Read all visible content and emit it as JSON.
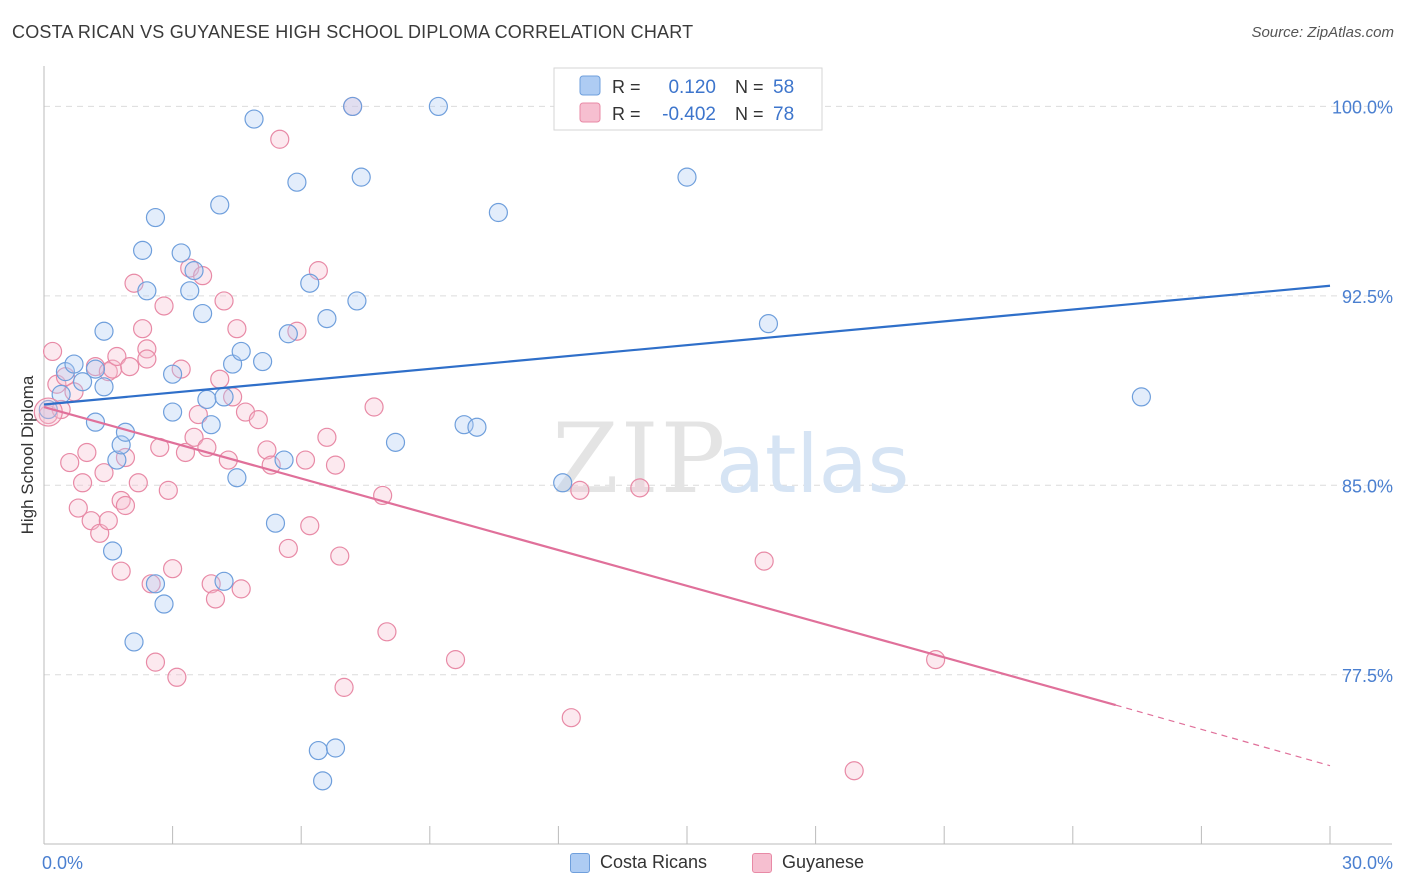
{
  "title": "COSTA RICAN VS GUYANESE HIGH SCHOOL DIPLOMA CORRELATION CHART",
  "source": "Source: ZipAtlas.com",
  "watermark": {
    "zip": "ZIP",
    "atlas": "atlas"
  },
  "colors": {
    "blue_fill": "#aeccf3",
    "blue_stroke": "#6f9fdc",
    "blue_line": "#2f6fc9",
    "pink_fill": "#f6bfd0",
    "pink_stroke": "#e88aa6",
    "pink_line": "#e0709a",
    "tick_label": "#4a7fd0",
    "grid": "#dcdcdc"
  },
  "legend_top": {
    "rows": [
      {
        "r_label": "R =",
        "r_value": "0.120",
        "n_label": "N =",
        "n_value": "58",
        "color": "blue"
      },
      {
        "r_label": "R =",
        "r_value": "-0.402",
        "n_label": "N =",
        "n_value": "78",
        "color": "pink"
      }
    ]
  },
  "legend_bottom": [
    "Costa Ricans",
    "Guyanese"
  ],
  "chart_data": {
    "type": "scatter",
    "xlabel": "",
    "ylabel": "High School Diploma",
    "xlim": [
      0,
      30
    ],
    "ylim": [
      70.8,
      101.6
    ],
    "x_tick_labels": [
      {
        "value": 0,
        "label": "0.0%"
      },
      {
        "value": 30,
        "label": "30.0%"
      }
    ],
    "y_tick_labels": [
      {
        "value": 100,
        "label": "100.0%"
      },
      {
        "value": 92.5,
        "label": "92.5%"
      },
      {
        "value": 85,
        "label": "85.0%"
      },
      {
        "value": 77.5,
        "label": "77.5%"
      }
    ],
    "grid": true,
    "series": [
      {
        "name": "Costa Ricans",
        "color": "blue",
        "trend": {
          "x": [
            0,
            30
          ],
          "y": [
            88.2,
            92.9
          ]
        },
        "points": [
          [
            0.1,
            88.0
          ],
          [
            0.4,
            88.6
          ],
          [
            0.5,
            89.5
          ],
          [
            0.7,
            89.8
          ],
          [
            0.9,
            89.1
          ],
          [
            1.2,
            89.6
          ],
          [
            1.2,
            87.5
          ],
          [
            1.4,
            88.9
          ],
          [
            1.4,
            91.1
          ],
          [
            1.6,
            82.4
          ],
          [
            1.7,
            86.0
          ],
          [
            1.8,
            86.6
          ],
          [
            1.9,
            87.1
          ],
          [
            2.1,
            78.8
          ],
          [
            2.3,
            94.3
          ],
          [
            2.4,
            92.7
          ],
          [
            2.6,
            95.6
          ],
          [
            2.6,
            81.1
          ],
          [
            2.8,
            80.3
          ],
          [
            3.0,
            87.9
          ],
          [
            3.0,
            89.4
          ],
          [
            3.2,
            94.2
          ],
          [
            3.4,
            92.7
          ],
          [
            3.5,
            93.5
          ],
          [
            3.7,
            91.8
          ],
          [
            3.8,
            88.4
          ],
          [
            3.9,
            87.4
          ],
          [
            4.1,
            96.1
          ],
          [
            4.2,
            88.5
          ],
          [
            4.2,
            81.2
          ],
          [
            4.4,
            89.8
          ],
          [
            4.5,
            85.3
          ],
          [
            4.6,
            90.3
          ],
          [
            4.9,
            99.5
          ],
          [
            5.1,
            89.9
          ],
          [
            5.4,
            83.5
          ],
          [
            5.6,
            86.0
          ],
          [
            5.7,
            91.0
          ],
          [
            5.9,
            97.0
          ],
          [
            6.2,
            93.0
          ],
          [
            6.4,
            74.5
          ],
          [
            6.5,
            73.3
          ],
          [
            6.6,
            91.6
          ],
          [
            6.8,
            74.6
          ],
          [
            7.2,
            100.0
          ],
          [
            7.3,
            92.3
          ],
          [
            7.4,
            97.2
          ],
          [
            8.2,
            86.7
          ],
          [
            9.2,
            100.0
          ],
          [
            9.8,
            87.4
          ],
          [
            10.1,
            87.3
          ],
          [
            10.6,
            95.8
          ],
          [
            12.1,
            85.1
          ],
          [
            15.0,
            97.2
          ],
          [
            16.9,
            91.4
          ],
          [
            25.6,
            88.5
          ]
        ]
      },
      {
        "name": "Guyanese",
        "color": "pink",
        "trend": {
          "x": [
            0,
            25
          ],
          "y": [
            88.1,
            76.3
          ]
        },
        "trend_dashed": {
          "x": [
            25,
            30
          ],
          "y": [
            76.3,
            73.9
          ]
        },
        "points": [
          [
            0.1,
            87.8
          ],
          [
            0.2,
            90.3
          ],
          [
            0.3,
            89.0
          ],
          [
            0.4,
            88.0
          ],
          [
            0.5,
            89.3
          ],
          [
            0.6,
            85.9
          ],
          [
            0.7,
            88.7
          ],
          [
            0.8,
            84.1
          ],
          [
            0.9,
            85.1
          ],
          [
            1.0,
            86.3
          ],
          [
            1.1,
            83.6
          ],
          [
            1.2,
            89.7
          ],
          [
            1.3,
            83.1
          ],
          [
            1.4,
            85.5
          ],
          [
            1.5,
            89.5
          ],
          [
            1.5,
            83.6
          ],
          [
            1.6,
            89.6
          ],
          [
            1.7,
            90.1
          ],
          [
            1.8,
            81.6
          ],
          [
            1.8,
            84.4
          ],
          [
            1.9,
            84.2
          ],
          [
            1.9,
            86.1
          ],
          [
            2.0,
            89.7
          ],
          [
            2.1,
            93.0
          ],
          [
            2.2,
            85.1
          ],
          [
            2.3,
            91.2
          ],
          [
            2.4,
            90.4
          ],
          [
            2.4,
            90.0
          ],
          [
            2.5,
            81.1
          ],
          [
            2.6,
            78.0
          ],
          [
            2.7,
            86.5
          ],
          [
            2.8,
            92.1
          ],
          [
            2.9,
            84.8
          ],
          [
            3.0,
            81.7
          ],
          [
            3.1,
            77.4
          ],
          [
            3.2,
            89.6
          ],
          [
            3.3,
            86.3
          ],
          [
            3.4,
            93.6
          ],
          [
            3.5,
            86.9
          ],
          [
            3.6,
            87.8
          ],
          [
            3.7,
            93.3
          ],
          [
            3.8,
            86.5
          ],
          [
            3.9,
            81.1
          ],
          [
            4.0,
            80.5
          ],
          [
            4.1,
            89.2
          ],
          [
            4.2,
            92.3
          ],
          [
            4.3,
            86.0
          ],
          [
            4.4,
            88.5
          ],
          [
            4.5,
            91.2
          ],
          [
            4.6,
            80.9
          ],
          [
            4.7,
            87.9
          ],
          [
            5.0,
            87.6
          ],
          [
            5.2,
            86.4
          ],
          [
            5.3,
            85.8
          ],
          [
            5.5,
            98.7
          ],
          [
            5.7,
            82.5
          ],
          [
            5.9,
            91.1
          ],
          [
            6.1,
            86.0
          ],
          [
            6.2,
            83.4
          ],
          [
            6.4,
            93.5
          ],
          [
            6.6,
            86.9
          ],
          [
            6.8,
            85.8
          ],
          [
            6.9,
            82.2
          ],
          [
            7.0,
            77.0
          ],
          [
            7.2,
            100.0
          ],
          [
            7.7,
            88.1
          ],
          [
            7.9,
            84.6
          ],
          [
            8.0,
            79.2
          ],
          [
            9.6,
            78.1
          ],
          [
            12.3,
            75.8
          ],
          [
            12.5,
            84.8
          ],
          [
            13.9,
            84.9
          ],
          [
            16.8,
            82.0
          ],
          [
            18.9,
            73.7
          ],
          [
            20.8,
            78.1
          ]
        ]
      }
    ]
  }
}
